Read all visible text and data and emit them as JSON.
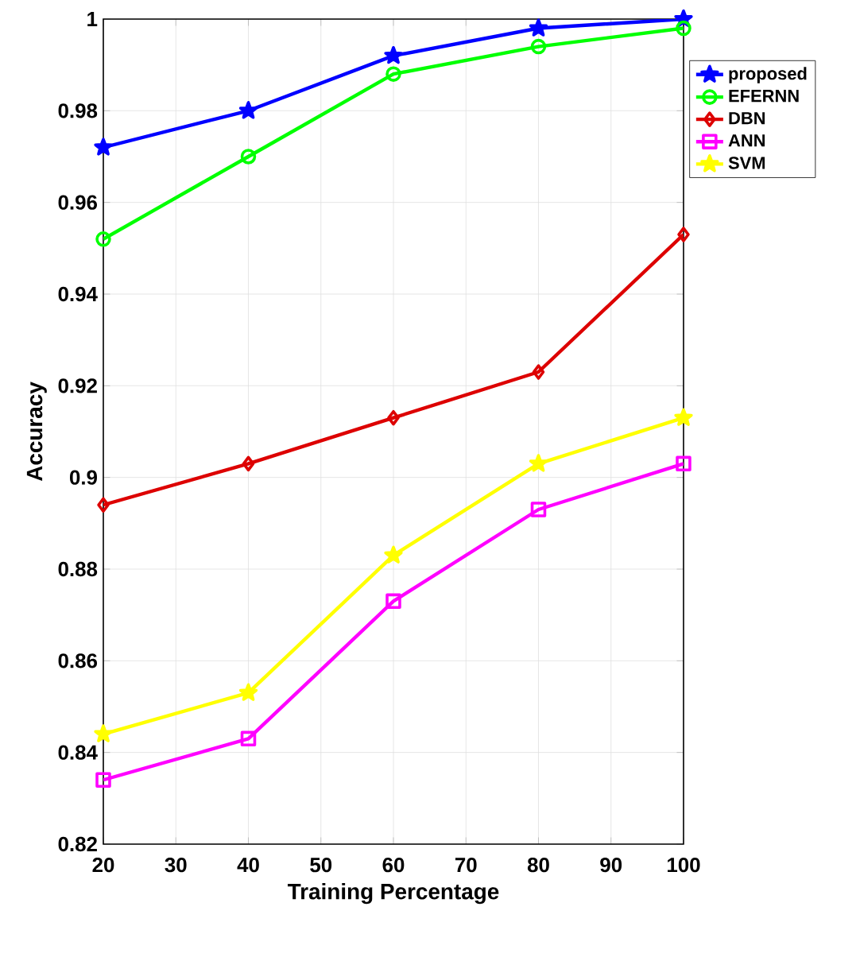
{
  "chart_data": {
    "type": "line",
    "xlabel": "Training Percentage",
    "ylabel": "Accuracy",
    "x": [
      20,
      40,
      60,
      80,
      100
    ],
    "series": [
      {
        "name": "proposed",
        "color": "#0000ff",
        "marker": "star",
        "values": [
          0.972,
          0.98,
          0.992,
          0.998,
          1.0
        ]
      },
      {
        "name": "EFERNN",
        "color": "#00ff00",
        "marker": "circle",
        "values": [
          0.952,
          0.97,
          0.988,
          0.994,
          0.998
        ]
      },
      {
        "name": "DBN",
        "color": "#dd0000",
        "marker": "diamond",
        "values": [
          0.894,
          0.903,
          0.913,
          0.923,
          0.953
        ]
      },
      {
        "name": "ANN",
        "color": "#ff00ff",
        "marker": "square",
        "values": [
          0.834,
          0.843,
          0.873,
          0.893,
          0.903
        ]
      },
      {
        "name": "SVM",
        "color": "#ffff00",
        "marker": "star",
        "values": [
          0.844,
          0.853,
          0.883,
          0.903,
          0.913
        ]
      }
    ],
    "xlim": [
      20,
      100
    ],
    "xticks": [
      20,
      30,
      40,
      50,
      60,
      70,
      80,
      90,
      100
    ],
    "ylim": [
      0.82,
      1
    ],
    "yticks": [
      0.82,
      0.84,
      0.86,
      0.88,
      0.9,
      0.92,
      0.94,
      0.96,
      0.98,
      1
    ],
    "grid": true,
    "legend": "top right",
    "line_style": "solid"
  }
}
